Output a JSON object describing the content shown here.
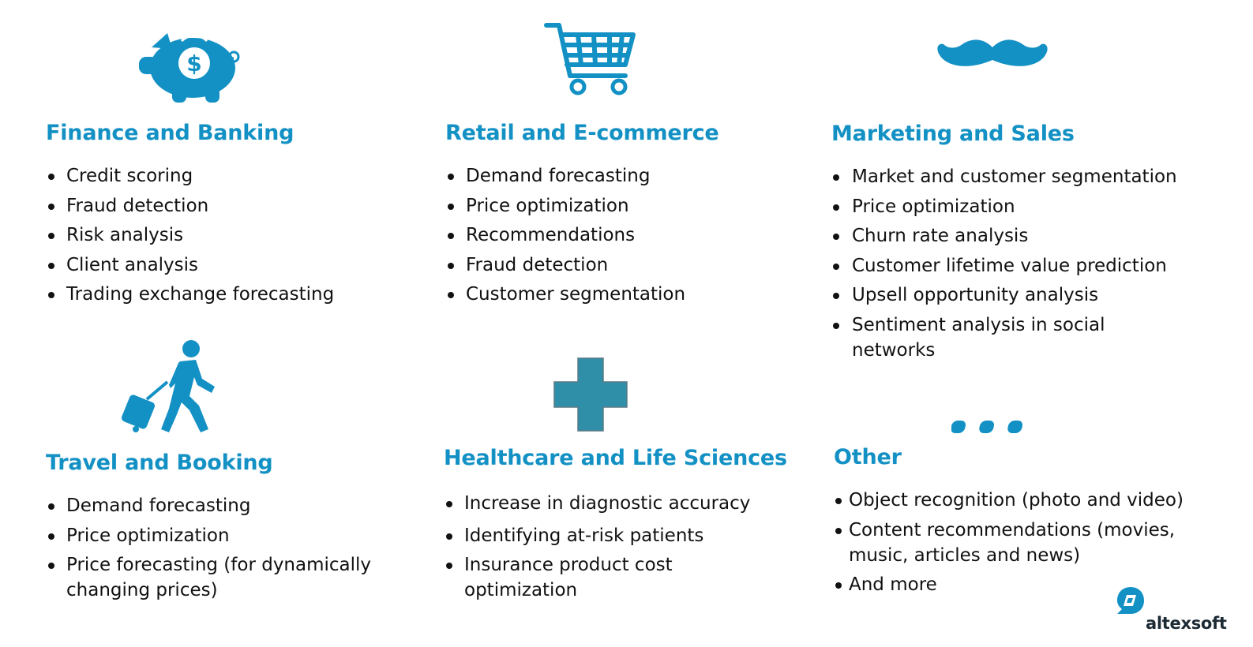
{
  "colors": {
    "accent": "#1391c4",
    "icon": "#1391c4",
    "text": "#111111"
  },
  "sections": [
    {
      "title": "Finance and Banking",
      "icon": "piggy-bank-icon",
      "items": [
        "Credit scoring",
        "Fraud detection",
        "Risk analysis",
        "Client analysis",
        "Trading exchange forecasting"
      ]
    },
    {
      "title": "Retail and E-commerce",
      "icon": "shopping-cart-icon",
      "items": [
        "Demand forecasting",
        "Price optimization",
        "Recommendations",
        "Fraud detection",
        "Customer segmentation"
      ]
    },
    {
      "title": "Marketing and Sales",
      "icon": "mustache-icon",
      "items": [
        "Market and customer segmentation",
        "Price optimization",
        "Churn rate analysis",
        "Customer lifetime value prediction",
        "Upsell opportunity analysis",
        "Sentiment analysis in social networks"
      ]
    },
    {
      "title": "Travel and Booking",
      "icon": "traveler-icon",
      "items": [
        "Demand forecasting",
        "Price optimization",
        "Price forecasting (for dynamically changing prices)"
      ]
    },
    {
      "title": "Healthcare and Life Sciences",
      "icon": "medical-cross-icon",
      "items": [
        "Increase in diagnostic accuracy",
        "Identifying at-risk patients",
        "Insurance product cost optimization"
      ]
    },
    {
      "title": "Other",
      "icon": "ellipsis-icon",
      "items": [
        "Object recognition (photo and video)",
        "Content recommendations (movies, music, articles and news)",
        "And more"
      ]
    }
  ],
  "logo": {
    "text": "altexsoft",
    "icon": "altexsoft-logo-icon"
  }
}
